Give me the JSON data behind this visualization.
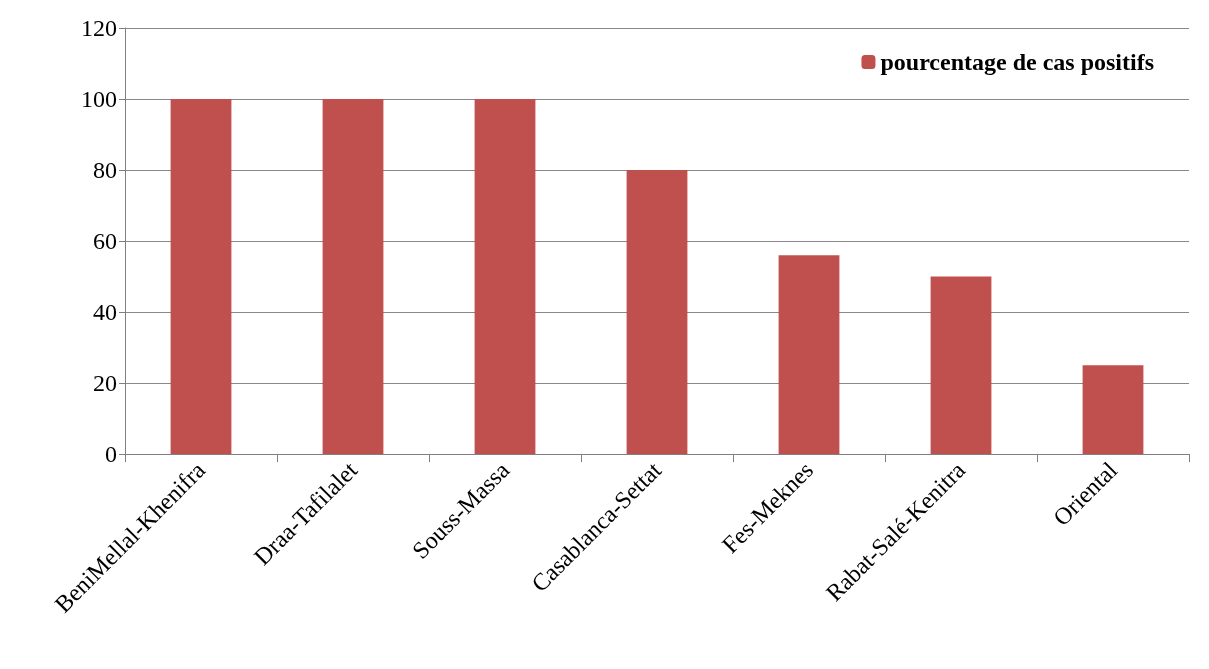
{
  "chart_data": {
    "type": "bar",
    "categories": [
      "BeniMellal-Khenifra",
      "Draa-Tafilalet",
      "Souss-Massa",
      "Casablanca-Settat",
      "Fes-Meknes",
      "Rabat-Salé-Kenitra",
      "Oriental"
    ],
    "series": [
      {
        "name": "pourcentage de cas positifs",
        "color": "#c0504d",
        "values": [
          100,
          100,
          100,
          80,
          56,
          50,
          25
        ]
      }
    ],
    "ylim": [
      0,
      120
    ],
    "yticks": [
      0,
      20,
      40,
      60,
      80,
      100,
      120
    ],
    "grid": "y",
    "legend": "top right"
  }
}
